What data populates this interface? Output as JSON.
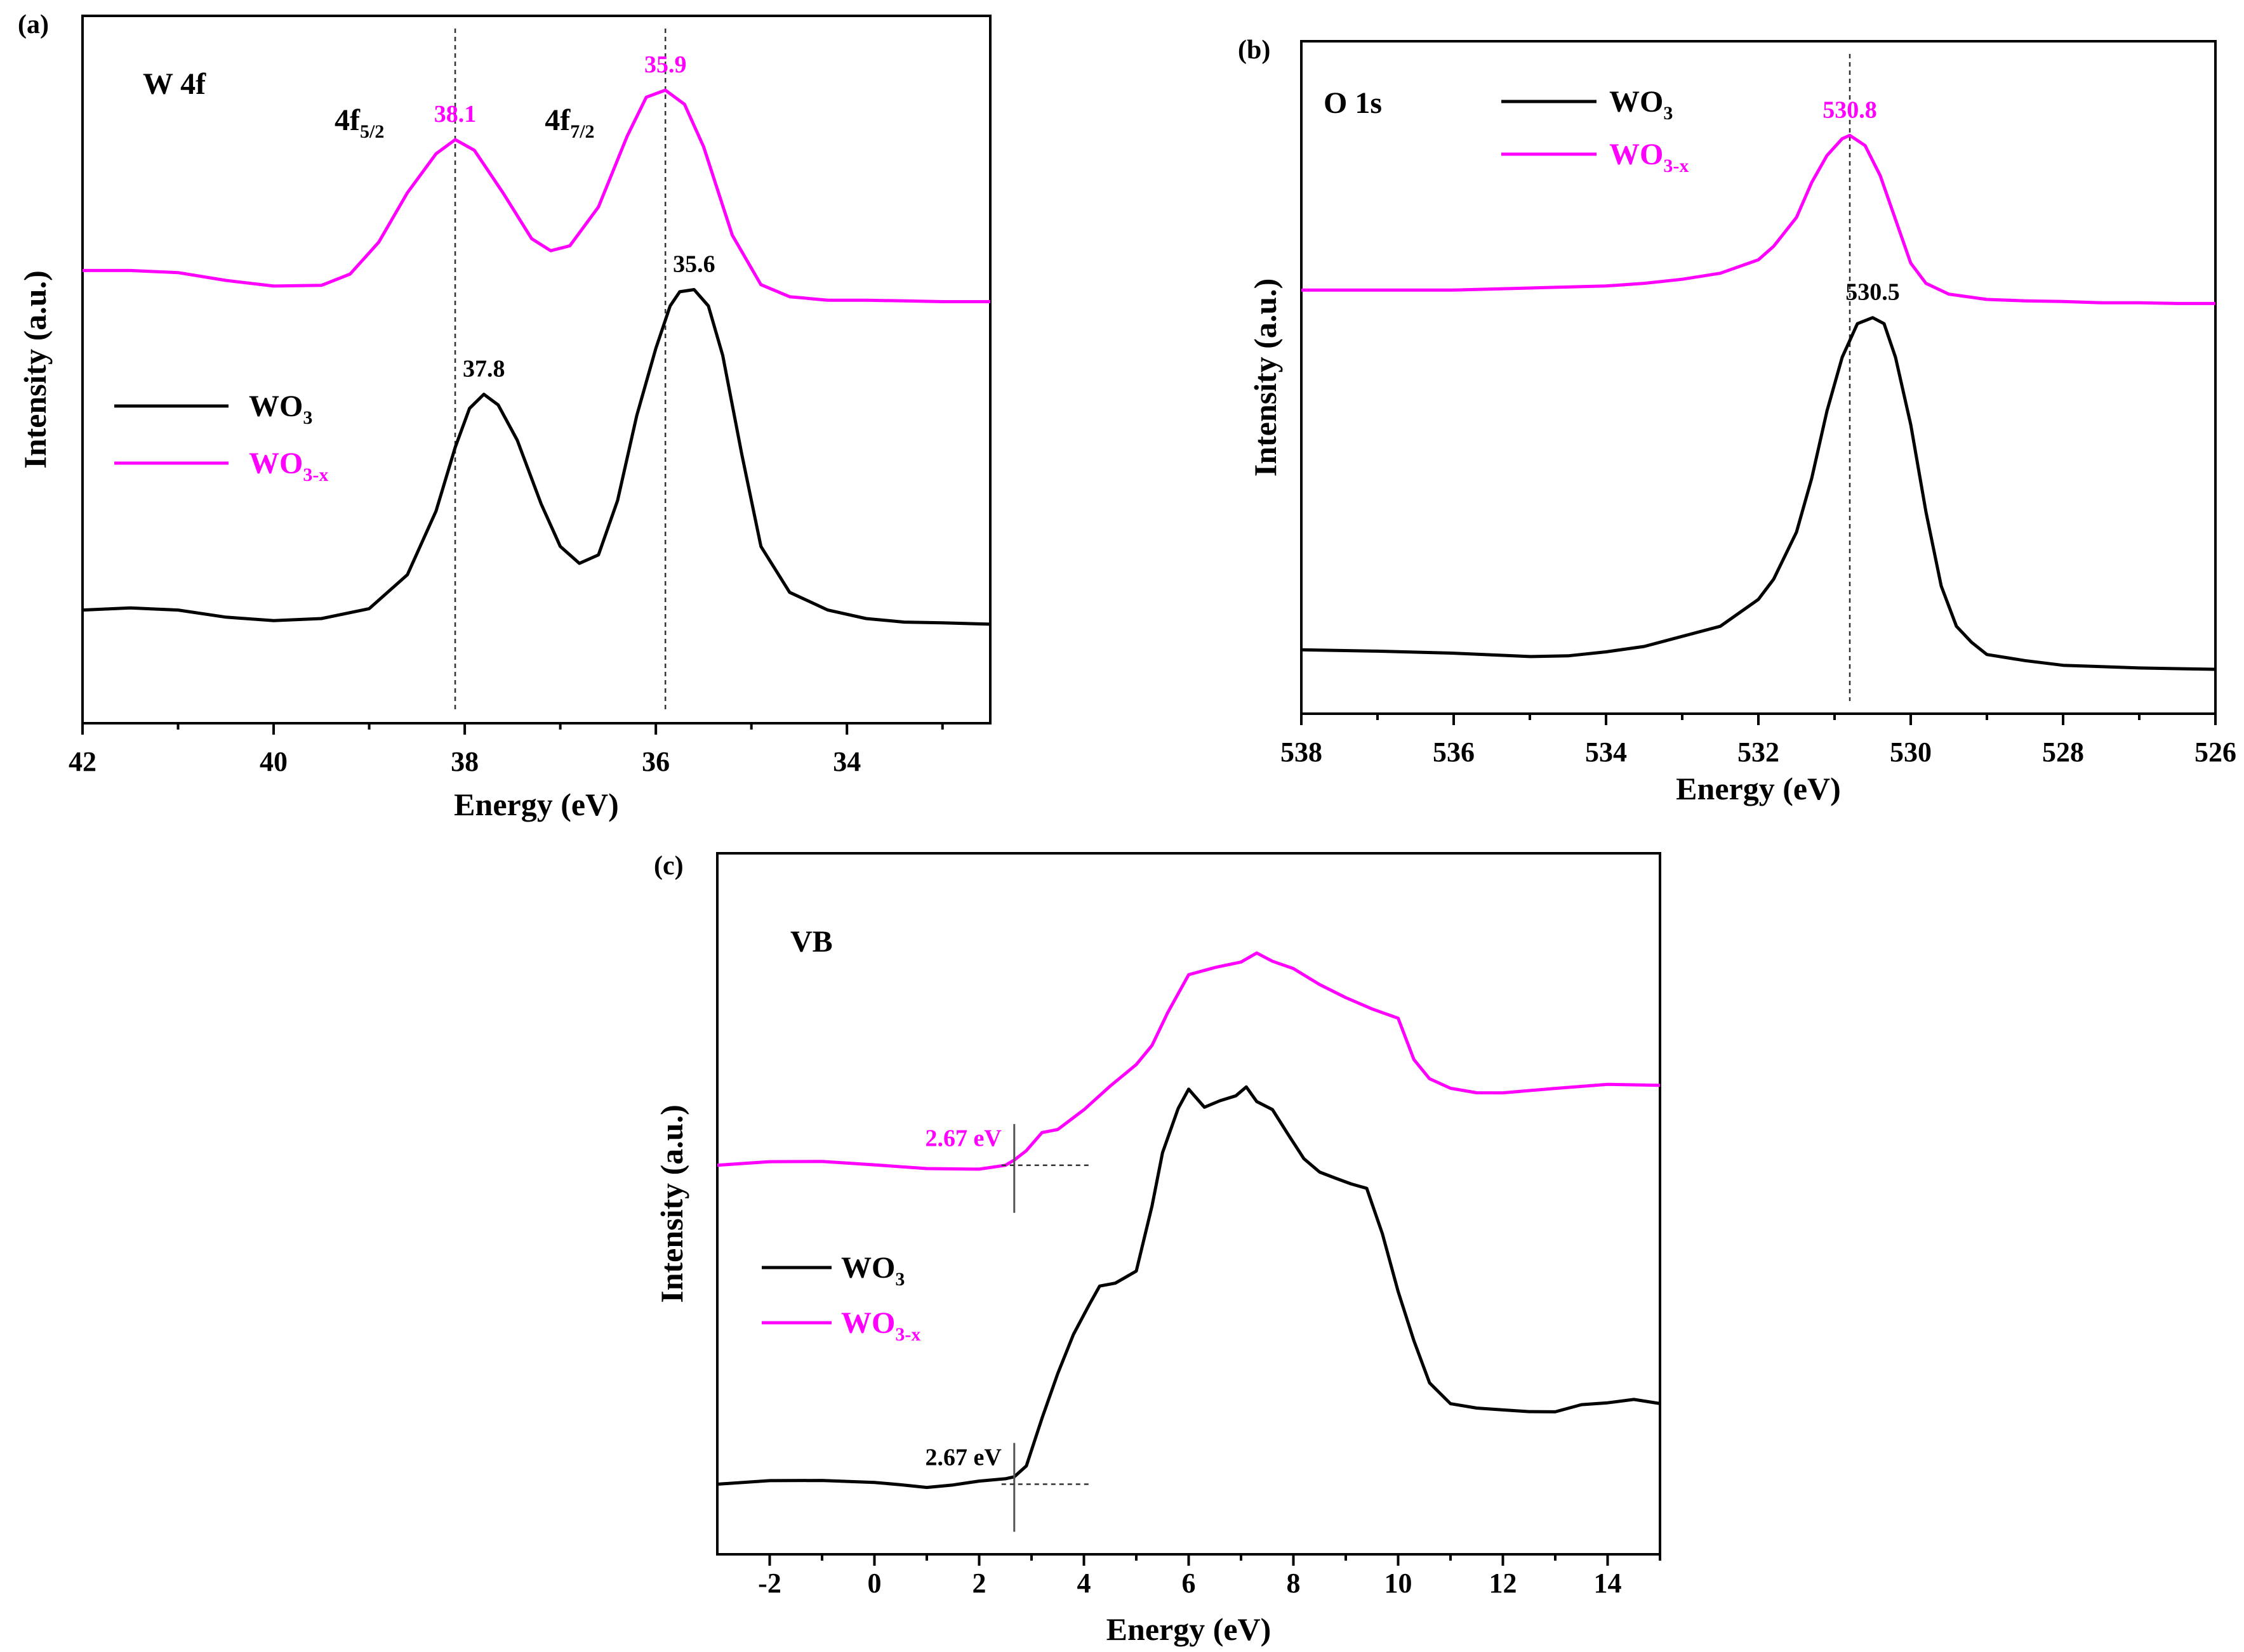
{
  "chart_data": [
    {
      "panel": "(a)",
      "type": "line",
      "title": "W 4f",
      "xlabel": "Energy (eV)",
      "ylabel": "Intensity (a.u.)",
      "xlim": [
        42,
        32.5
      ],
      "x_reversed": true,
      "ylim": [
        0,
        100
      ],
      "xticks": [
        42,
        40,
        38,
        36,
        34
      ],
      "series": [
        {
          "name": "WO3",
          "color": "#000000",
          "x": [
            42,
            41.5,
            41,
            40.5,
            40,
            39.5,
            39,
            38.6,
            38.3,
            38.1,
            37.95,
            37.8,
            37.65,
            37.45,
            37.2,
            37,
            36.8,
            36.6,
            36.4,
            36.2,
            36,
            35.85,
            35.75,
            35.6,
            35.45,
            35.3,
            35.1,
            34.9,
            34.6,
            34.2,
            33.8,
            33.4,
            33,
            32.5
          ],
          "y": [
            16,
            16.3,
            16,
            15,
            14.5,
            14.8,
            16.2,
            21,
            30,
            39,
            44.5,
            46.5,
            45,
            40,
            31,
            25,
            22.6,
            23.8,
            31.5,
            43.5,
            53,
            59,
            61,
            61.3,
            59,
            52,
            38,
            25,
            18.5,
            16,
            14.8,
            14.3,
            14.2,
            14
          ]
        },
        {
          "name": "WO3-x",
          "color": "#ff00ff",
          "x": [
            42,
            41.5,
            41,
            40.5,
            40,
            39.5,
            39.2,
            38.9,
            38.6,
            38.3,
            38.1,
            37.9,
            37.6,
            37.3,
            37.1,
            36.9,
            36.6,
            36.3,
            36.1,
            35.9,
            35.7,
            35.5,
            35.2,
            34.9,
            34.6,
            34.2,
            33.8,
            33.4,
            33,
            32.5
          ],
          "y": [
            64,
            64,
            63.7,
            62.6,
            61.8,
            61.9,
            63.5,
            68,
            75,
            80.5,
            82.5,
            81,
            75,
            68.5,
            66.8,
            67.5,
            73,
            83,
            88.5,
            89.5,
            87.5,
            81.5,
            69,
            62,
            60.3,
            59.8,
            59.8,
            59.7,
            59.6,
            59.6
          ]
        }
      ],
      "annotations": [
        {
          "text": "4f",
          "sub": "5/2",
          "x": 38.1
        },
        {
          "text": "4f",
          "sub": "7/2",
          "x": 35.9
        },
        {
          "label": "38.1",
          "series": "WO3-x",
          "x": 38.1,
          "y": 82.5
        },
        {
          "label": "35.9",
          "series": "WO3-x",
          "x": 35.9,
          "y": 89.5
        },
        {
          "label": "37.8",
          "series": "WO3",
          "x": 37.8,
          "y": 46.5
        },
        {
          "label": "35.6",
          "series": "WO3",
          "x": 35.6,
          "y": 61.3
        }
      ],
      "guides_x": [
        38.1,
        35.9
      ]
    },
    {
      "panel": "(b)",
      "type": "line",
      "title": "O 1s",
      "xlabel": "Energy (eV)",
      "ylabel": "Intensity (a.u.)",
      "xlim": [
        538,
        526
      ],
      "x_reversed": true,
      "ylim": [
        0,
        100
      ],
      "xticks": [
        538,
        536,
        534,
        532,
        530,
        528,
        526
      ],
      "series": [
        {
          "name": "WO3",
          "color": "#000000",
          "x": [
            538,
            537,
            536,
            535,
            534.5,
            534,
            533.5,
            533,
            532.5,
            532,
            531.8,
            531.5,
            531.3,
            531.1,
            530.9,
            530.7,
            530.5,
            530.35,
            530.2,
            530,
            529.8,
            529.6,
            529.4,
            529.2,
            529,
            528.5,
            528,
            527.5,
            527,
            526.5,
            526
          ],
          "y": [
            9.5,
            9.3,
            9,
            8.5,
            8.6,
            9.2,
            10,
            11.5,
            13,
            17,
            20,
            27,
            35,
            45,
            53,
            58,
            58.9,
            58,
            53,
            43,
            30,
            19,
            13,
            10.6,
            8.8,
            7.9,
            7.2,
            7,
            6.8,
            6.7,
            6.6
          ]
        },
        {
          "name": "WO3-x",
          "color": "#ff00ff",
          "x": [
            538,
            537,
            536,
            535,
            534,
            533.5,
            533,
            532.5,
            532,
            531.8,
            531.5,
            531.3,
            531.1,
            530.9,
            530.8,
            530.6,
            530.4,
            530.2,
            530,
            529.8,
            529.5,
            529,
            528.5,
            528,
            527.5,
            527,
            526.5,
            526
          ],
          "y": [
            63,
            63,
            63,
            63.3,
            63.6,
            64,
            64.6,
            65.5,
            67.5,
            69.5,
            73.8,
            79,
            83,
            85.5,
            86,
            84.5,
            80,
            73.5,
            67,
            64,
            62.4,
            61.6,
            61.4,
            61.3,
            61.1,
            61.1,
            61,
            61
          ]
        }
      ],
      "annotations": [
        {
          "label": "530.8",
          "series": "WO3-x",
          "x": 530.8,
          "y": 86
        },
        {
          "label": "530.5",
          "series": "WO3",
          "x": 530.5,
          "y": 58.9
        }
      ],
      "guides_x": [
        530.8
      ]
    },
    {
      "panel": "(c)",
      "type": "line",
      "title": "VB",
      "xlabel": "Energy (eV)",
      "ylabel": "Intensity (a.u.)",
      "xlim": [
        -3,
        15
      ],
      "x_reversed": false,
      "ylim": [
        0,
        100
      ],
      "xticks": [
        -2,
        0,
        2,
        4,
        6,
        8,
        10,
        12,
        14
      ],
      "series": [
        {
          "name": "WO3",
          "color": "#000000",
          "x": [
            -3,
            -2,
            -1,
            0,
            0.5,
            1,
            1.5,
            2,
            2.5,
            2.67,
            2.9,
            3.2,
            3.5,
            3.8,
            4.1,
            4.3,
            4.6,
            5,
            5.3,
            5.5,
            5.8,
            6,
            6.3,
            6.6,
            6.9,
            7.1,
            7.3,
            7.6,
            7.9,
            8.2,
            8.5,
            8.8,
            9.1,
            9.4,
            9.7,
            10,
            10.3,
            10.6,
            11,
            11.5,
            12,
            12.5,
            13,
            13.5,
            14,
            14.5,
            15
          ],
          "y": [
            10,
            10,
            10,
            10.2,
            10.4,
            10.1,
            10,
            10,
            10.2,
            10.9,
            13,
            20,
            26,
            31,
            35,
            38,
            39,
            41,
            50,
            57,
            63,
            66,
            64,
            65.3,
            65.8,
            66.5,
            64,
            63,
            60,
            57,
            55,
            53.6,
            52.3,
            51.7,
            45.7,
            38,
            31,
            24.5,
            21,
            20.3,
            20.5,
            20.8,
            20.9,
            21.5,
            21.2,
            21.5,
            21.3
          ]
        },
        {
          "name": "WO3-x",
          "color": "#ff00ff",
          "x": [
            -3,
            -2,
            -1,
            0,
            1,
            2,
            2.5,
            2.67,
            2.9,
            3.2,
            3.5,
            4,
            4.5,
            5,
            5.3,
            5.6,
            6,
            6.5,
            7,
            7.3,
            7.6,
            8,
            8.5,
            9,
            9.5,
            10,
            10.3,
            10.6,
            11,
            11.5,
            12,
            13,
            14,
            15
          ],
          "y": [
            55.5,
            55.5,
            55.5,
            55.5,
            55.5,
            55.5,
            55.6,
            55.8,
            57,
            60,
            61,
            64,
            67,
            69.5,
            72,
            77,
            83,
            84.3,
            84.8,
            85.5,
            84,
            83.2,
            81.5,
            80,
            78.2,
            76.3,
            70,
            67.4,
            66.6,
            66.4,
            66.3,
            66.4,
            66.5,
            66.4
          ]
        }
      ],
      "annotations": [
        {
          "label": "2.67 eV",
          "series": "WO3-x",
          "x": 2.67
        },
        {
          "label": "2.67 eV",
          "series": "WO3",
          "x": 2.67
        }
      ]
    }
  ],
  "legends": [
    {
      "entries": [
        {
          "name": "WO",
          "sub": "3",
          "color": "#000000"
        },
        {
          "name": "WO",
          "sub": "3-x",
          "color": "#ff00ff"
        }
      ]
    },
    {
      "entries": [
        {
          "name": "WO",
          "sub": "3",
          "color": "#000000"
        },
        {
          "name": "WO",
          "sub": "3-x",
          "color": "#ff00ff"
        }
      ]
    },
    {
      "entries": [
        {
          "name": "WO",
          "sub": "3",
          "color": "#000000"
        },
        {
          "name": "WO",
          "sub": "3-x",
          "color": "#ff00ff"
        }
      ]
    }
  ],
  "colors": {
    "wo3": "#000000",
    "wo3x": "#ff00ff",
    "axis": "#000000"
  }
}
